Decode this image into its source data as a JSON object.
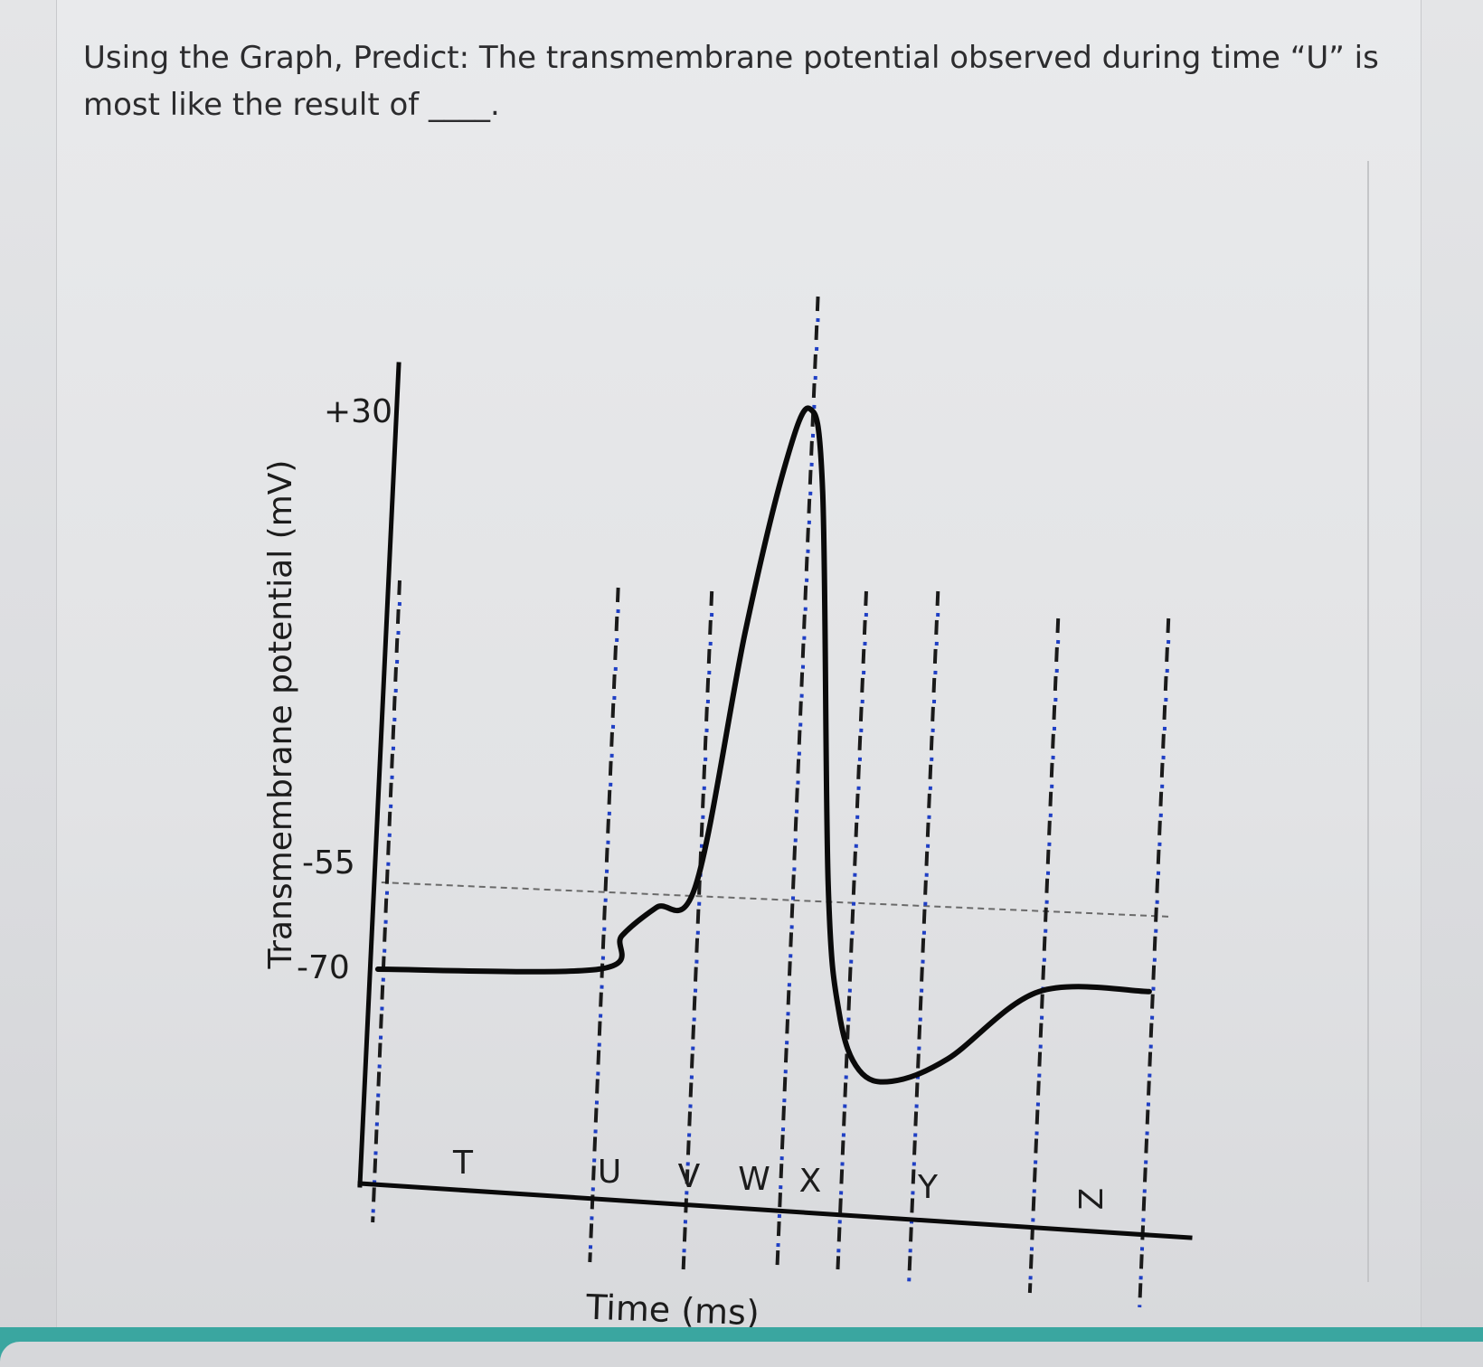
{
  "question": {
    "text": "Using the Graph, Predict: The transmembrane potential observed during time “U” is most like the result of ____."
  },
  "chart_data": {
    "type": "line",
    "title": "",
    "xlabel": "Time (ms)",
    "ylabel": "Transmembrane potential (mV)",
    "yticks": [
      {
        "value": 30,
        "label": "+30"
      },
      {
        "value": -55,
        "label": "-55"
      },
      {
        "value": -70,
        "label": "-70"
      }
    ],
    "threshold_value": -55,
    "phase_labels": [
      "T",
      "U",
      "V",
      "W",
      "X",
      "Y",
      "Z"
    ],
    "series": [
      {
        "points": [
          {
            "t": 0.0,
            "v": -70
          },
          {
            "t": 2.0,
            "v": -70
          },
          {
            "t": 2.2,
            "v": -64
          },
          {
            "t": 2.5,
            "v": -59
          },
          {
            "t": 2.85,
            "v": -55
          },
          {
            "t": 3.2,
            "v": -10
          },
          {
            "t": 3.5,
            "v": 20
          },
          {
            "t": 3.7,
            "v": 30
          },
          {
            "t": 3.85,
            "v": 15
          },
          {
            "t": 4.05,
            "v": -55
          },
          {
            "t": 4.2,
            "v": -78
          },
          {
            "t": 4.4,
            "v": -88
          },
          {
            "t": 4.7,
            "v": -90
          },
          {
            "t": 5.2,
            "v": -86
          },
          {
            "t": 6.0,
            "v": -74
          },
          {
            "t": 7.0,
            "v": -74
          }
        ]
      }
    ],
    "boundaries": [
      2.0,
      2.85,
      3.7,
      4.25,
      4.9,
      6.0,
      7.0
    ],
    "colors": {
      "curve": "#0a0a0a",
      "axes": "#0a0a0a",
      "boundary_dash": "#1a1a1a",
      "boundary_dot": "#1f3fc4",
      "threshold": "#6a6a6a"
    }
  }
}
